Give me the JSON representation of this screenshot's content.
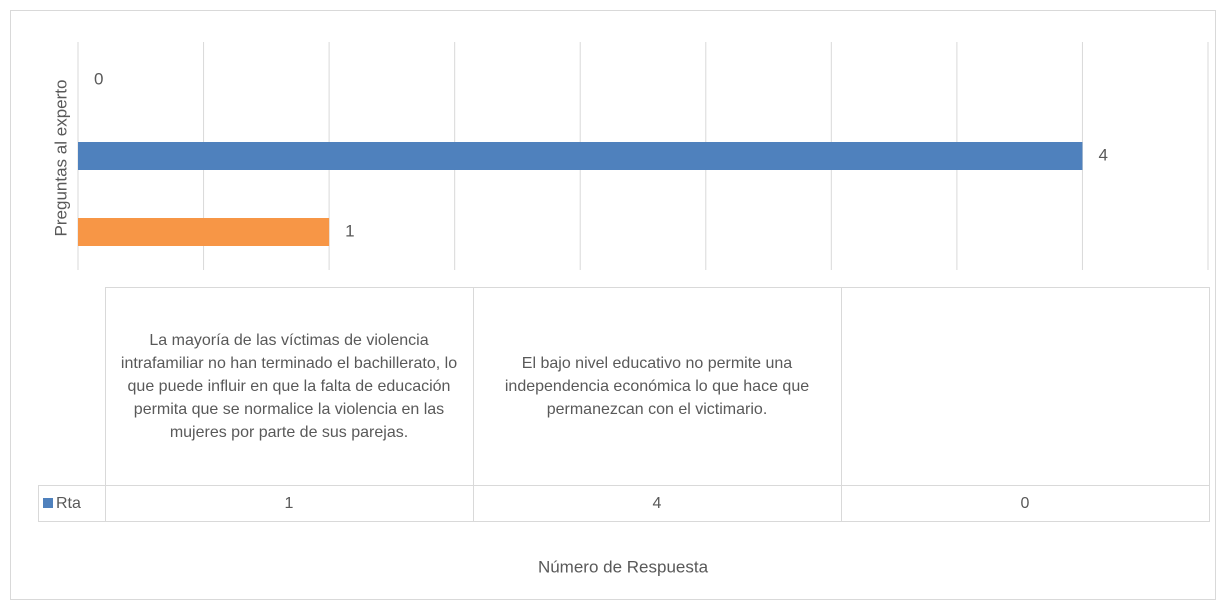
{
  "chart_data": {
    "type": "hbar",
    "y_axis_label": "Preguntas al experto",
    "x_axis_label": "Número de Respuesta",
    "categories": [
      "La mayoría de las víctimas de violencia intrafamiliar no han terminado el bachillerato, lo que puede influir en que la falta de educación permita que se normalice la violencia en las mujeres por parte de sus parejas.",
      "El bajo nivel educativo no permite una independencia económica lo que hace que permanezcan con el victimario.",
      null
    ],
    "series": [
      {
        "name": "Rta",
        "color": "#4f81bd",
        "values": [
          1,
          4,
          0
        ]
      }
    ],
    "point_colors": [
      "#f79646",
      "#4f81bd",
      "#4f81bd"
    ],
    "xlim": [
      0,
      4.5
    ],
    "xticks": [
      0,
      0.5,
      1,
      1.5,
      2,
      2.5,
      3,
      3.5,
      4,
      4.5
    ],
    "grid": true,
    "data_table": true
  }
}
